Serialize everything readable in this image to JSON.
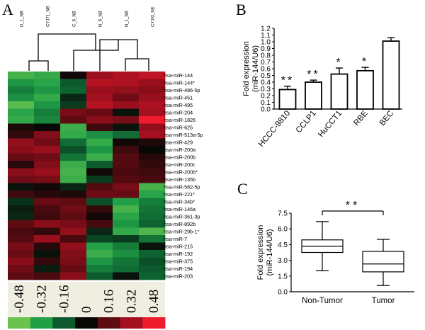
{
  "chart_data": [
    {
      "panel": "A",
      "type": "heatmap",
      "columns": [
        "D_1_NB",
        "CYJ71_NB",
        "C_5_NB",
        "N_5_NB",
        "N_1_NB",
        "CYJXI_NE"
      ],
      "rows": [
        "hsa-miR-144",
        "hsa-miR-144*",
        "hsa-miR-486-5p",
        "hsa-miR-451",
        "hsa-miR-495",
        "hsa-miR-204",
        "hsa-miR-1826",
        "hsa-miR-625",
        "hsa-miR-513a-5p",
        "hsa-miR-429",
        "hsa-miR-200a",
        "hsa-miR-200b",
        "hsa-miR-200c",
        "hsa-miR-200b*",
        "hsa-miR-135b",
        "hsa-miR-582-5p",
        "hsa-miR-221*",
        "hsa-miR-34b*",
        "hsa-miR-146a",
        "hsa-miR-361-3p",
        "hsa-miR-892b",
        "hsa-miR-29b-1*",
        "hsa-miR-7",
        "hsa-miR-215",
        "hsa-miR-192",
        "hsa-miR-375",
        "hsa-miR-194",
        "hsa-miR-203"
      ],
      "values": [
        [
          -0.4,
          -0.36,
          0.02,
          0.3,
          0.34,
          0.38
        ],
        [
          -0.3,
          -0.34,
          -0.16,
          0.36,
          0.34,
          0.3
        ],
        [
          -0.24,
          -0.3,
          -0.18,
          0.3,
          0.28,
          0.26
        ],
        [
          -0.28,
          -0.36,
          -0.06,
          0.32,
          0.2,
          0.3
        ],
        [
          -0.44,
          -0.3,
          -0.1,
          0.36,
          0.3,
          0.34
        ],
        [
          -0.34,
          -0.24,
          0.22,
          0.18,
          -0.02,
          0.32
        ],
        [
          -0.36,
          -0.26,
          0.16,
          0.26,
          0.22,
          0.48
        ],
        [
          0.04,
          0.0,
          -0.38,
          0.1,
          -0.02,
          0.28
        ],
        [
          0.08,
          0.24,
          -0.36,
          -0.28,
          -0.2,
          0.32
        ],
        [
          0.28,
          0.2,
          -0.2,
          -0.36,
          0.02,
          0.04
        ],
        [
          0.26,
          0.3,
          -0.14,
          -0.3,
          0.1,
          0.0
        ],
        [
          0.18,
          0.2,
          -0.22,
          -0.38,
          0.14,
          0.06
        ],
        [
          0.06,
          0.24,
          -0.38,
          -0.16,
          0.14,
          0.08
        ],
        [
          0.26,
          0.3,
          -0.4,
          0.02,
          0.12,
          0.1
        ],
        [
          0.2,
          0.22,
          -0.38,
          -0.1,
          0.14,
          0.12
        ],
        [
          -0.02,
          0.02,
          -0.06,
          0.14,
          0.22,
          -0.4
        ],
        [
          0.1,
          0.06,
          0.04,
          0.2,
          0.18,
          -0.34
        ],
        [
          -0.08,
          0.18,
          0.16,
          -0.14,
          -0.32,
          -0.24
        ],
        [
          -0.04,
          0.12,
          0.2,
          0.08,
          -0.4,
          -0.22
        ],
        [
          -0.06,
          0.1,
          0.16,
          0.02,
          -0.34,
          -0.2
        ],
        [
          0.16,
          0.26,
          0.22,
          0.12,
          -0.3,
          -0.18
        ],
        [
          0.12,
          0.08,
          0.28,
          -0.06,
          -0.36,
          -0.42
        ],
        [
          0.14,
          0.3,
          0.12,
          -0.12,
          -0.1,
          -0.22
        ],
        [
          0.22,
          0.06,
          0.28,
          -0.32,
          -0.24,
          -0.02
        ],
        [
          0.18,
          -0.02,
          0.24,
          -0.38,
          -0.28,
          -0.18
        ],
        [
          0.26,
          0.08,
          0.22,
          -0.3,
          -0.22,
          -0.14
        ],
        [
          0.2,
          -0.04,
          0.18,
          -0.24,
          -0.2,
          -0.16
        ],
        [
          0.16,
          0.12,
          0.26,
          -0.16,
          -0.02,
          -0.18
        ]
      ],
      "color_scale": {
        "ticks": [
          -0.48,
          -0.32,
          -0.16,
          0.0,
          0.16,
          0.32,
          0.48
        ],
        "colors": [
          "#6cc24f",
          "#21a048",
          "#0c5a2e",
          "#080806",
          "#5e0b12",
          "#a3101f",
          "#ee1c2c"
        ]
      }
    },
    {
      "panel": "B",
      "type": "bar",
      "categories": [
        "HCCC-9810",
        "CCLP1",
        "HuCCT1",
        "RBE",
        "BEC"
      ],
      "values": [
        0.29,
        0.4,
        0.52,
        0.57,
        1.01
      ],
      "errors": [
        0.05,
        0.03,
        0.09,
        0.05,
        0.05
      ],
      "significance": [
        "**",
        "**",
        "*",
        "*",
        ""
      ],
      "ylabel_line1": "Fold expression",
      "ylabel_line2": "(miR-144/U6)",
      "ylim": [
        0,
        1.2
      ],
      "yticks": [
        "0.0",
        "0.1",
        "0.2",
        "0.3",
        "0.4",
        "0.5",
        "0.6",
        "0.7",
        "0.8",
        "0.9",
        "1.0",
        "1.1",
        "1.2"
      ]
    },
    {
      "panel": "C",
      "type": "box",
      "categories": [
        "Non-Tumor",
        "Tumor"
      ],
      "boxes": [
        {
          "min": 2.0,
          "q1": 3.75,
          "median": 4.35,
          "q3": 4.95,
          "max": 6.7
        },
        {
          "min": 0.6,
          "q1": 1.9,
          "median": 2.65,
          "q3": 3.85,
          "max": 5.0
        }
      ],
      "significance": "**",
      "ylabel_line1": "Fold expression",
      "ylabel_line2": "(miR-144/U6)",
      "ylim": [
        0,
        7.5
      ],
      "yticks": [
        "0.0",
        "1.5",
        "3.0",
        "4.5",
        "6.0",
        "7.5"
      ]
    }
  ],
  "panel_labels": {
    "a": "A",
    "b": "B",
    "c": "C"
  }
}
